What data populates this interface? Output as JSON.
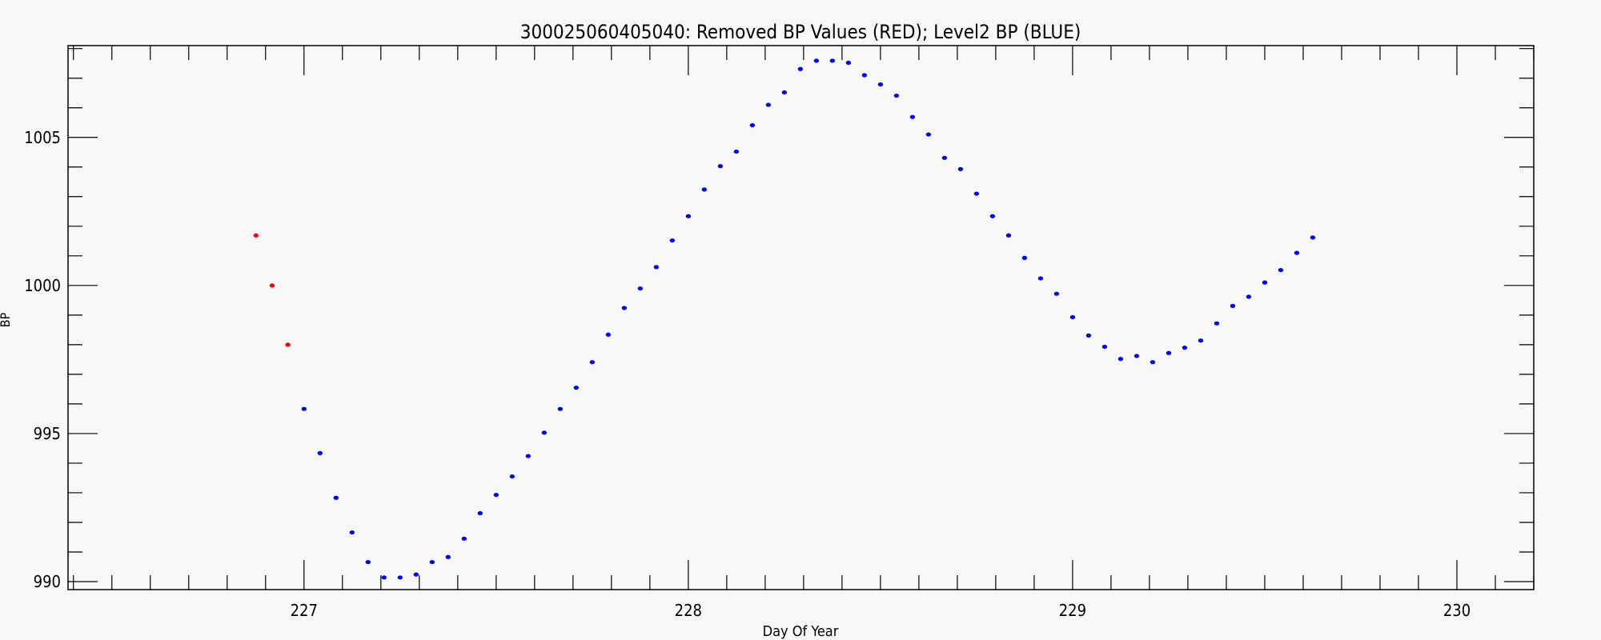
{
  "chart_data": {
    "type": "scatter",
    "title": "300025060405040: Removed BP Values (RED); Level2 BP (BLUE)",
    "xlabel": "Day Of Year",
    "ylabel": "BP",
    "xlim": [
      226.386,
      230.2
    ],
    "ylim": [
      989.73,
      1008.1
    ],
    "xticks": [
      227,
      228,
      229,
      230
    ],
    "xtick_labels": [
      "227",
      "228",
      "229",
      "230"
    ],
    "yticks": [
      990,
      995,
      1000,
      1005
    ],
    "ytick_labels": [
      "990",
      "995",
      "1000",
      "1005"
    ],
    "x_minor_step": 0.1,
    "y_minor_step": 1,
    "grid": false,
    "background": "#f8f8f8",
    "series": [
      {
        "color": "#ff0000",
        "x": [
          226.875,
          226.917,
          226.958
        ],
        "y": [
          1001.69,
          1000.0,
          998.0
        ]
      },
      {
        "color": "#0000ff",
        "x_start": 227.0,
        "x_step_hours": 1,
        "y": [
          995.83,
          994.34,
          992.83,
          991.66,
          990.66,
          990.14,
          990.14,
          990.24,
          990.66,
          990.83,
          991.45,
          992.31,
          992.93,
          993.55,
          994.24,
          995.03,
          995.83,
          996.55,
          997.41,
          998.34,
          999.24,
          999.9,
          1000.62,
          1001.52,
          1002.34,
          1003.24,
          1004.03,
          1004.52,
          1005.41,
          1006.1,
          1006.52,
          1007.31,
          1007.59,
          1007.59,
          1007.52,
          1007.1,
          1006.79,
          1006.41,
          1005.69,
          1005.1,
          1004.31,
          1003.93,
          1003.1,
          1002.34,
          1001.69,
          1000.93,
          1000.24,
          999.72,
          998.93,
          998.31,
          997.93,
          997.52,
          997.62,
          997.41,
          997.72,
          997.9,
          998.14,
          998.72,
          999.31,
          999.62,
          1000.1,
          1000.52,
          1001.1,
          1001.62
        ]
      }
    ]
  }
}
